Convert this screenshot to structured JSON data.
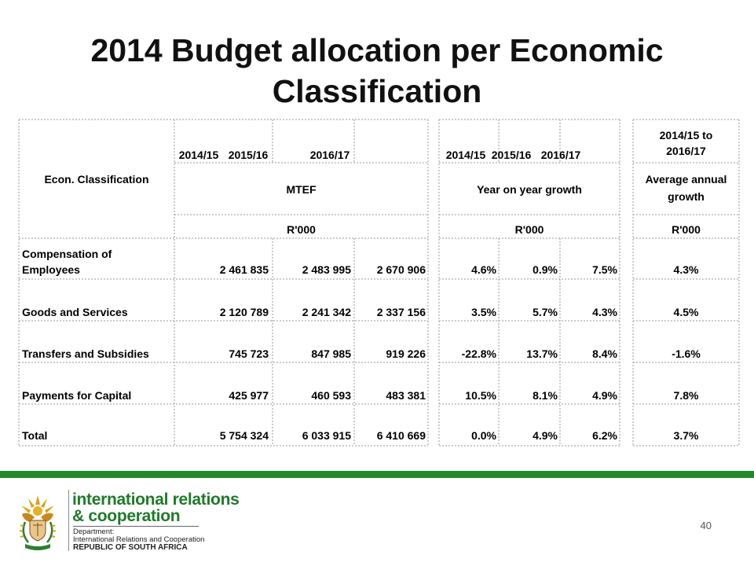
{
  "title_line1": "2014 Budget allocation per Economic",
  "title_line2": "Classification",
  "table": {
    "header": {
      "classification": "Econ. Classification",
      "years_mtef": [
        "2014/15",
        "2015/16",
        "2016/17"
      ],
      "years_growth": [
        "2014/15",
        "2015/16",
        "2016/17"
      ],
      "avg_period_line1": "2014/15 to",
      "avg_period_line2": "2016/17",
      "mtef": "MTEF",
      "yoy": "Year on year growth",
      "avg_line1": "Average annual",
      "avg_line2": "growth",
      "unit_mtef": "R'000",
      "unit_yoy": "R'000",
      "unit_avg": "R'000"
    },
    "rows": [
      {
        "label1": "Compensation of",
        "label2": "Employees",
        "v1": "2 461 835",
        "v2": "2 483 995",
        "v3": "2 670 906",
        "g1": "4.6%",
        "g2": "0.9%",
        "g3": "7.5%",
        "avg": "4.3%"
      },
      {
        "label1": "",
        "label2": "Goods and Services",
        "v1": "2 120 789",
        "v2": "2 241 342",
        "v3": "2 337 156",
        "g1": "3.5%",
        "g2": "5.7%",
        "g3": "4.3%",
        "avg": "4.5%"
      },
      {
        "label1": "",
        "label2": "Transfers and Subsidies",
        "v1": "745 723",
        "v2": "847 985",
        "v3": "919 226",
        "g1": "-22.8%",
        "g2": "13.7%",
        "g3": "8.4%",
        "avg": "-1.6%"
      },
      {
        "label1": "",
        "label2": "Payments for Capital",
        "v1": "425 977",
        "v2": "460 593",
        "v3": "483 381",
        "g1": "10.5%",
        "g2": "8.1%",
        "g3": "4.9%",
        "avg": "7.8%"
      },
      {
        "label1": "",
        "label2": "Total",
        "v1": "5 754 324",
        "v2": "6 033 915",
        "v3": "6 410 669",
        "g1": "0.0%",
        "g2": "4.9%",
        "g3": "6.2%",
        "avg": "3.7%"
      }
    ]
  },
  "footer": {
    "org_line1": "international relations",
    "org_line2": "& cooperation",
    "dept_line1": "Department:",
    "dept_line2": "International Relations and Cooperation",
    "dept_line3": "REPUBLIC OF SOUTH AFRICA",
    "page_number": "40",
    "logo_icon": "coat-of-arms-icon",
    "brand_color": "#1f8a2b"
  }
}
